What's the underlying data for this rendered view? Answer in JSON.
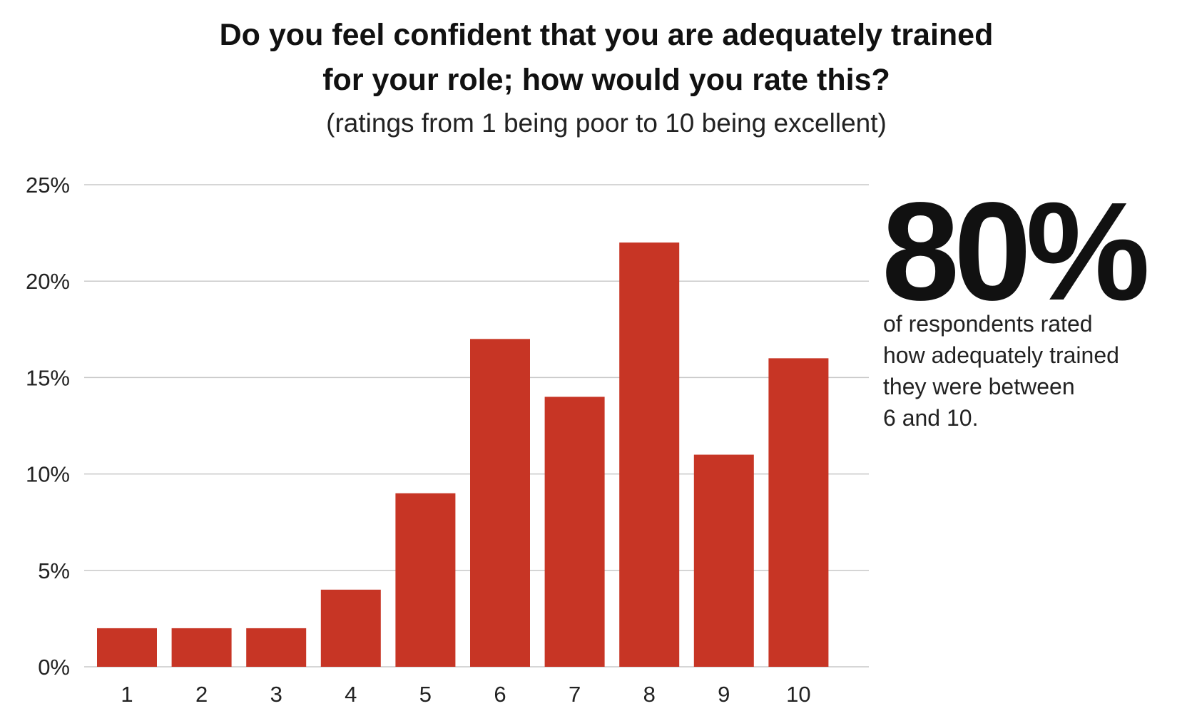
{
  "title_lines": [
    "Do you feel confident that you are adequately trained",
    "for your role; how would you rate this?"
  ],
  "subtitle": "(ratings from 1 being poor to 10 being excellent)",
  "callout": {
    "value": "80%",
    "lines": [
      "of respondents rated",
      "how adequately trained",
      "they were between",
      "6 and 10."
    ]
  },
  "colors": {
    "bar": "#C73525",
    "grid": "#C8C8C8",
    "text": "#111111"
  },
  "chart_data": {
    "type": "bar",
    "categories": [
      "1",
      "2",
      "3",
      "4",
      "5",
      "6",
      "7",
      "8",
      "9",
      "10"
    ],
    "values": [
      2,
      2,
      2,
      4,
      9,
      17,
      14,
      22,
      11,
      16
    ],
    "unit": "%",
    "ylim": [
      0,
      25
    ],
    "yticks": [
      0,
      5,
      10,
      15,
      20,
      25
    ],
    "ytick_labels": [
      "0%",
      "5%",
      "10%",
      "15%",
      "20%",
      "25%"
    ],
    "grid": true,
    "xlabel": "",
    "ylabel": ""
  }
}
